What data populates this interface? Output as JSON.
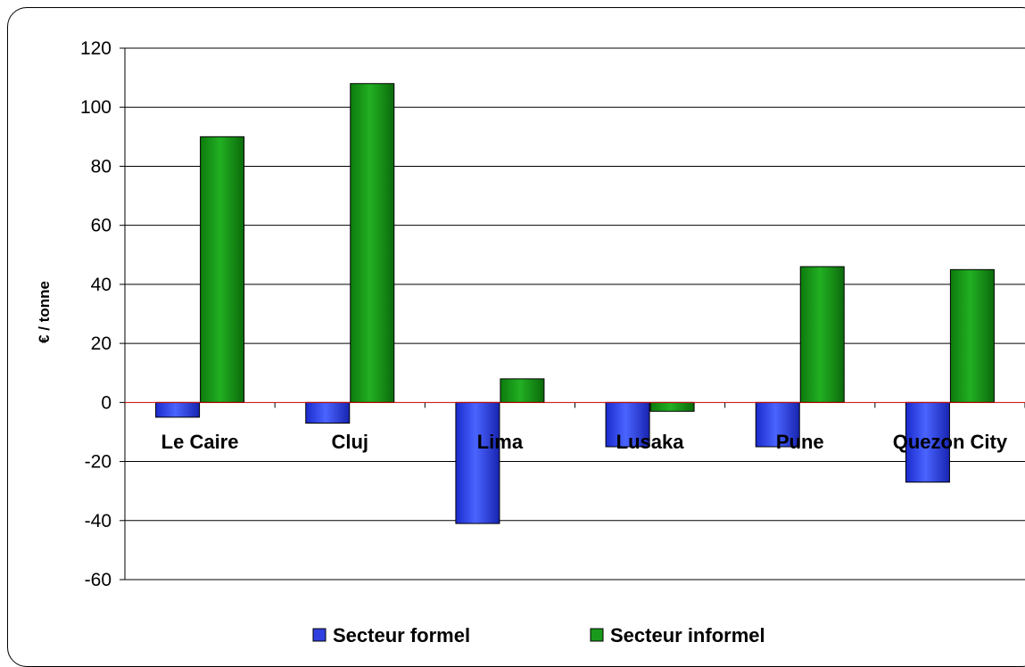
{
  "chart_data": {
    "type": "bar",
    "title": "",
    "xlabel": "",
    "ylabel": "€ / tonne",
    "categories": [
      "Le Caire",
      "Cluj",
      "Lima",
      "Lusaka",
      "Pune",
      "Quezon City"
    ],
    "series": [
      {
        "name": "Secteur formel",
        "values": [
          -5,
          -7,
          -41,
          -15,
          -15,
          -27
        ],
        "color": "#3040e0"
      },
      {
        "name": "Secteur informel",
        "values": [
          90,
          108,
          8,
          -3,
          46,
          45
        ],
        "color": "#1a9a1a"
      }
    ],
    "ylim": [
      -60,
      120
    ],
    "yticks": [
      -60,
      -40,
      -20,
      0,
      20,
      40,
      60,
      80,
      100,
      120
    ],
    "grid": true,
    "legend": "bottom",
    "zero_line_color": "#cc0000"
  }
}
